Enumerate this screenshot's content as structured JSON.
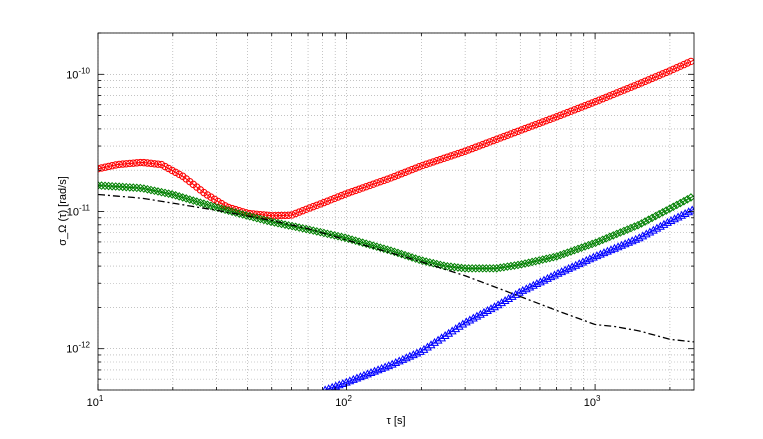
{
  "chart_data": {
    "type": "scatter",
    "xscale": "log",
    "yscale": "log",
    "xlim": [
      10,
      2500
    ],
    "ylim": [
      5e-13,
      2e-10
    ],
    "grid": true,
    "xlabel": "τ [s]",
    "ylabel": "σ_Ω (τ) [rad/s]",
    "xticks": [
      {
        "value": 10,
        "base": "10",
        "exp": "1"
      },
      {
        "value": 100,
        "base": "10",
        "exp": "2"
      },
      {
        "value": 1000,
        "base": "10",
        "exp": "3"
      }
    ],
    "yticks": [
      {
        "value": 1e-12,
        "base": "10",
        "exp": "-12"
      },
      {
        "value": 1e-11,
        "base": "10",
        "exp": "-11"
      },
      {
        "value": 1e-10,
        "base": "10",
        "exp": "-10"
      }
    ],
    "series": [
      {
        "color": "#ff0000",
        "marker": "circle",
        "points": [
          [
            10,
            2.05e-11
          ],
          [
            12,
            2.2e-11
          ],
          [
            15,
            2.28e-11
          ],
          [
            18,
            2.2e-11
          ],
          [
            22,
            1.8e-11
          ],
          [
            27,
            1.35e-11
          ],
          [
            33,
            1.08e-11
          ],
          [
            40,
            9.7e-12
          ],
          [
            50,
            9.3e-12
          ],
          [
            60,
            9.4e-12
          ],
          [
            70,
            1.05e-11
          ],
          [
            80,
            1.15e-11
          ],
          [
            100,
            1.35e-11
          ],
          [
            150,
            1.75e-11
          ],
          [
            200,
            2.15e-11
          ],
          [
            300,
            2.75e-11
          ],
          [
            500,
            3.9e-11
          ],
          [
            700,
            4.9e-11
          ],
          [
            1000,
            6.3e-11
          ],
          [
            1500,
            8.5e-11
          ],
          [
            2000,
            1.06e-10
          ],
          [
            2500,
            1.27e-10
          ]
        ]
      },
      {
        "color": "#008000",
        "marker": "diamond",
        "points": [
          [
            10,
            1.55e-11
          ],
          [
            15,
            1.48e-11
          ],
          [
            20,
            1.33e-11
          ],
          [
            30,
            1.07e-11
          ],
          [
            40,
            9.3e-12
          ],
          [
            50,
            8.4e-12
          ],
          [
            70,
            7.4e-12
          ],
          [
            100,
            6.4e-12
          ],
          [
            150,
            5.2e-12
          ],
          [
            200,
            4.4e-12
          ],
          [
            250,
            4e-12
          ],
          [
            300,
            3.85e-12
          ],
          [
            400,
            3.85e-12
          ],
          [
            500,
            4.1e-12
          ],
          [
            700,
            4.7e-12
          ],
          [
            1000,
            5.9e-12
          ],
          [
            1500,
            8e-12
          ],
          [
            2000,
            1.05e-11
          ],
          [
            2500,
            1.3e-11
          ]
        ]
      },
      {
        "color": "#0000ff",
        "marker": "triangle",
        "points": [
          [
            82,
            5e-13
          ],
          [
            100,
            5.7e-13
          ],
          [
            150,
            7.6e-13
          ],
          [
            200,
            9.6e-13
          ],
          [
            300,
            1.55e-12
          ],
          [
            400,
            2.05e-12
          ],
          [
            500,
            2.6e-12
          ],
          [
            700,
            3.5e-12
          ],
          [
            1000,
            4.7e-12
          ],
          [
            1500,
            6.4e-12
          ],
          [
            2000,
            8.5e-12
          ],
          [
            2500,
            1.04e-11
          ]
        ]
      },
      {
        "color": "#000000",
        "marker": "none",
        "linestyle": "dash-dot",
        "points": [
          [
            10,
            1.33e-11
          ],
          [
            15,
            1.25e-11
          ],
          [
            20,
            1.15e-11
          ],
          [
            30,
            1.02e-11
          ],
          [
            50,
            8.6e-12
          ],
          [
            70,
            7.5e-12
          ],
          [
            100,
            6.2e-12
          ],
          [
            150,
            5e-12
          ],
          [
            200,
            4.3e-12
          ],
          [
            300,
            3.4e-12
          ],
          [
            500,
            2.4e-12
          ],
          [
            700,
            1.9e-12
          ],
          [
            1000,
            1.5e-12
          ],
          [
            1200,
            1.45e-12
          ],
          [
            1500,
            1.35e-12
          ],
          [
            2000,
            1.17e-12
          ],
          [
            2500,
            1.12e-12
          ]
        ]
      }
    ]
  }
}
